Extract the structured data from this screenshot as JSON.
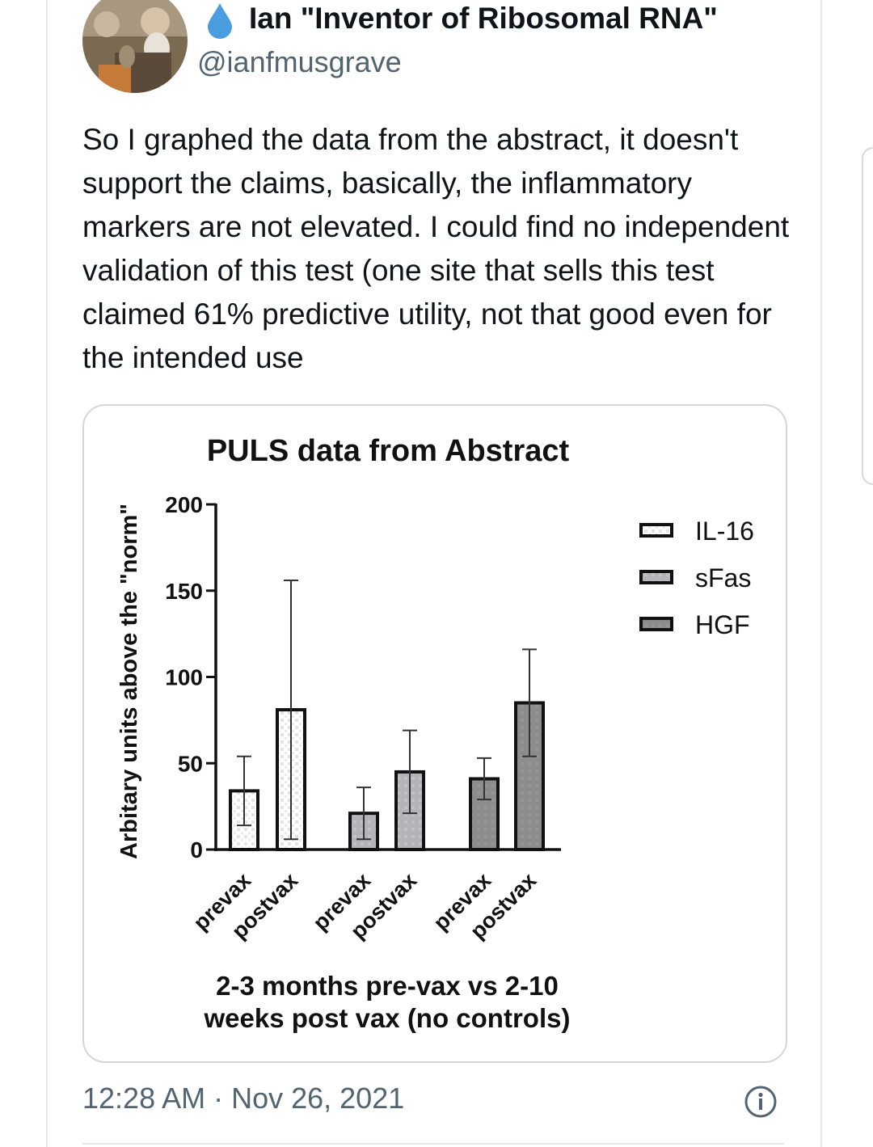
{
  "tweet": {
    "author_name": "Ian \"Inventor of Ribosomal RNA\"",
    "handle": "@ianfmusgrave",
    "badge_icon": "water-drop-icon",
    "badge_color": "#4a9ee0",
    "text": "So I graphed the data from the abstract, it doesn't support the claims, basically, the inflammatory markers are not elevated. I could find no independent validation of this test (one site that sells this test claimed 61% predictive utility, not that good even for the intended use",
    "timestamp": "12:28 AM · Nov 26, 2021",
    "info_icon": "info-icon"
  },
  "chart_data": {
    "type": "bar",
    "title": "PULS data from Abstract",
    "ylabel": "Arbitary units above the \"norm\"",
    "xlabel": "2-3 months pre-vax vs 2-10 weeks post vax (no controls)",
    "xlabel_lines": [
      "2-3 months pre-vax vs 2-10",
      "weeks post vax (no controls)"
    ],
    "ylim": [
      0,
      200
    ],
    "yticks": [
      0,
      50,
      100,
      150,
      200
    ],
    "legend_position": "top-right",
    "categories": [
      "prevax",
      "postvax",
      "prevax",
      "postvax",
      "prevax",
      "postvax"
    ],
    "series": [
      {
        "name": "IL-16",
        "pattern": "white-dotted",
        "color": "#ffffff",
        "bars": [
          {
            "label": "prevax",
            "value": 34,
            "error": 20
          },
          {
            "label": "postvax",
            "value": 81,
            "error": 75
          }
        ]
      },
      {
        "name": "sFas",
        "pattern": "light-gray",
        "color": "#b4b4b8",
        "bars": [
          {
            "label": "prevax",
            "value": 21,
            "error": 15
          },
          {
            "label": "postvax",
            "value": 45,
            "error": 24
          }
        ]
      },
      {
        "name": "HGF",
        "pattern": "dark-gray",
        "color": "#8c8c8c",
        "bars": [
          {
            "label": "prevax",
            "value": 41,
            "error": 12
          },
          {
            "label": "postvax",
            "value": 85,
            "error": 31
          }
        ]
      }
    ]
  }
}
